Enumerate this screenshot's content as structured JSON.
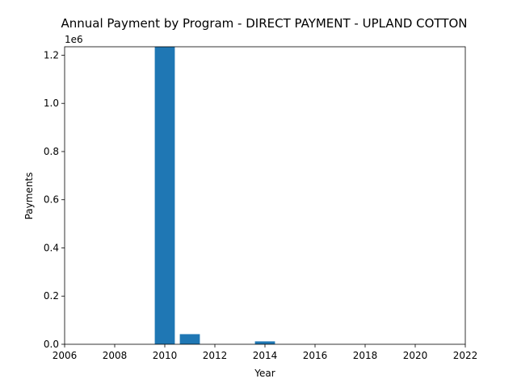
{
  "chart_data": {
    "type": "bar",
    "title": "Annual Payment by Program - DIRECT PAYMENT - UPLAND COTTON",
    "xlabel": "Year",
    "ylabel": "Payments",
    "y_offset_label": "1e6",
    "xlim": [
      2006,
      2022
    ],
    "ylim": [
      0,
      1235000
    ],
    "x_ticks": [
      2006,
      2008,
      2010,
      2012,
      2014,
      2016,
      2018,
      2020,
      2022
    ],
    "y_ticks": [
      0,
      200000,
      400000,
      600000,
      800000,
      1000000,
      1200000
    ],
    "y_tick_labels": [
      "0.0",
      "0.2",
      "0.4",
      "0.6",
      "0.8",
      "1.0",
      "1.2"
    ],
    "bar_width": 0.8,
    "series": [
      {
        "x": [
          2010,
          2011,
          2014
        ],
        "values": [
          1235000,
          42000,
          12000
        ]
      }
    ],
    "bar_color": "#1f77b4",
    "grid": false
  }
}
